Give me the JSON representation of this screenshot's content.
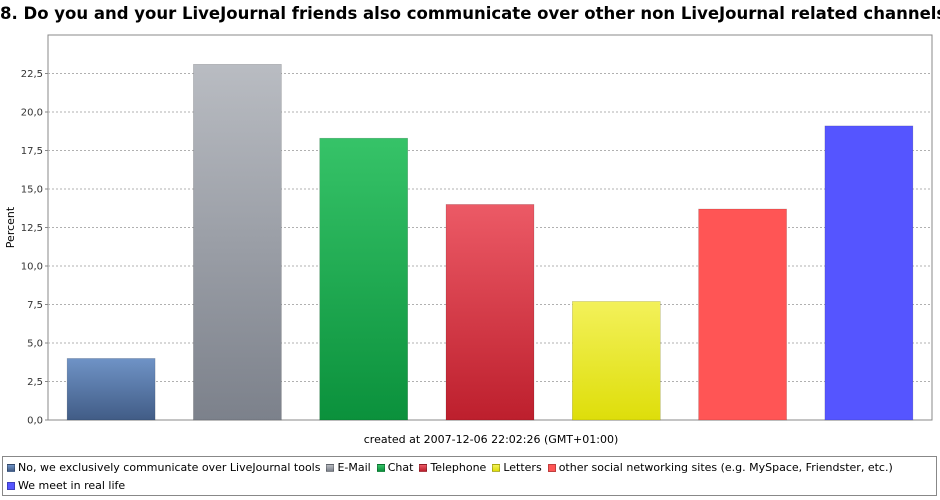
{
  "chart_data": {
    "type": "bar",
    "title": "8. Do you and your LiveJournal friends also communicate over other non LiveJournal related channels?",
    "xlabel": "created at 2007-12-06 22:02:26 (GMT+01:00)",
    "ylabel": "Percent",
    "ylim": [
      0,
      25
    ],
    "yticks": [
      "0,0",
      "2,5",
      "5,0",
      "7,5",
      "10,0",
      "12,5",
      "15,0",
      "17,5",
      "20,0",
      "22,5"
    ],
    "grid": true,
    "legend_position": "bottom",
    "categories": [
      "No, we exclusively communicate over LiveJournal tools",
      "E-Mail",
      "Chat",
      "Telephone",
      "Letters",
      "other social networking sites (e.g. MySpace, Friendster, etc.)",
      "We meet in real life"
    ],
    "values": [
      4.0,
      23.1,
      18.3,
      14.0,
      7.7,
      13.7,
      19.1
    ],
    "colors_top": [
      "#6f93c6",
      "#b9bcc2",
      "#36c368",
      "#ec5a66",
      "#f3f15a",
      "#ff5555",
      "#5555ff"
    ],
    "colors_bottom": [
      "#415c86",
      "#7c818b",
      "#0b913c",
      "#bd1f2d",
      "#dede0a",
      "#ff5555",
      "#5555ff"
    ]
  }
}
